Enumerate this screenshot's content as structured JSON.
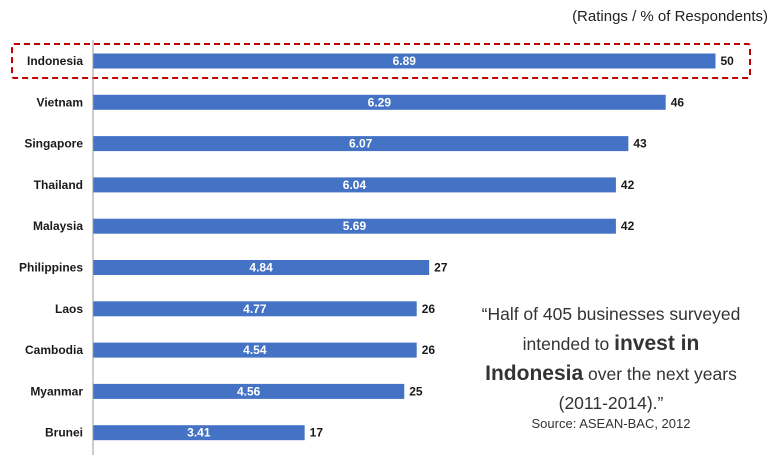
{
  "units_label": "(Ratings / % of Respondents)",
  "quote": {
    "part1": "“Half of 405 businesses surveyed intended to ",
    "bold1": "invest in",
    "bold2": "Indonesia",
    "part2": " over the next years (2011-2014).”"
  },
  "source": "Source: ASEAN-BAC, 2012",
  "chart_data": {
    "type": "bar",
    "orientation": "horizontal",
    "categories": [
      "Indonesia",
      "Vietnam",
      "Singapore",
      "Thailand",
      "Malaysia",
      "Philippines",
      "Laos",
      "Cambodia",
      "Myanmar",
      "Brunei"
    ],
    "series": [
      {
        "values": [
          6.89,
          6.29,
          6.07,
          6.04,
          5.69,
          4.84,
          4.77,
          4.54,
          4.56,
          3.41
        ]
      },
      {
        "values": [
          50,
          46,
          43,
          42,
          42,
          27,
          26,
          26,
          25,
          17
        ]
      }
    ],
    "bar_length_series": 1,
    "highlight": "Indonesia",
    "colors": {
      "bar": "#4472c4",
      "highlight_border": "#c00000",
      "axis": "#999999"
    }
  }
}
